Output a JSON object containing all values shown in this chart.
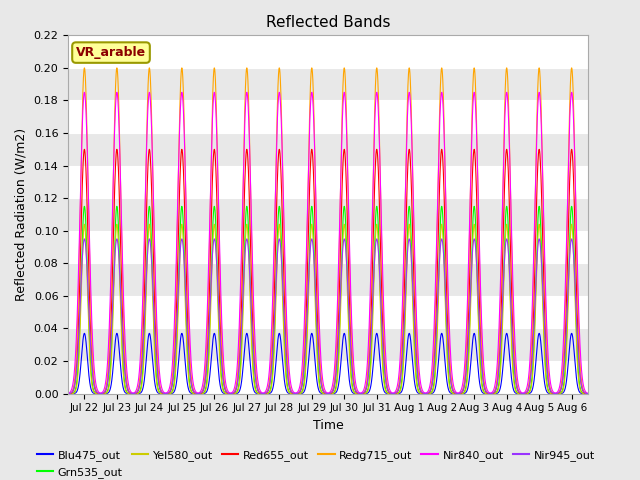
{
  "title": "Reflected Bands",
  "xlabel": "Time",
  "ylabel": "Reflected Radiation (W/m2)",
  "annotation": "VR_arable",
  "annotation_color": "#8B0000",
  "annotation_bg": "#FFFF99",
  "annotation_border": "#999900",
  "ylim": [
    0,
    0.22
  ],
  "yticks": [
    0.0,
    0.02,
    0.04,
    0.06,
    0.08,
    0.1,
    0.12,
    0.14,
    0.16,
    0.18,
    0.2,
    0.22
  ],
  "lines": [
    {
      "label": "Blu475_out",
      "color": "#0000FF",
      "peak": 0.037,
      "sigma": 0.09
    },
    {
      "label": "Grn535_out",
      "color": "#00FF00",
      "peak": 0.115,
      "sigma": 0.1
    },
    {
      "label": "Yel580_out",
      "color": "#CCCC00",
      "peak": 0.104,
      "sigma": 0.095
    },
    {
      "label": "Red655_out",
      "color": "#FF0000",
      "peak": 0.15,
      "sigma": 0.115
    },
    {
      "label": "Redg715_out",
      "color": "#FFA500",
      "peak": 0.2,
      "sigma": 0.12
    },
    {
      "label": "Nir840_out",
      "color": "#FF00FF",
      "peak": 0.185,
      "sigma": 0.135
    },
    {
      "label": "Nir945_out",
      "color": "#9933FF",
      "peak": 0.095,
      "sigma": 0.125
    }
  ],
  "bg_color": "#E8E8E8",
  "plot_bg_color": "#F0F0F0",
  "grid_color": "#FFFFFF",
  "xtick_labels": [
    "Jul 22",
    "Jul 23",
    "Jul 24",
    "Jul 25",
    "Jul 26",
    "Jul 27",
    "Jul 28",
    "Jul 29",
    "Jul 30",
    "Jul 31",
    "Aug 1",
    "Aug 2",
    "Aug 3",
    "Aug 4",
    "Aug 5",
    "Aug 6"
  ],
  "xtick_positions": [
    22,
    23,
    24,
    25,
    26,
    27,
    28,
    29,
    30,
    31,
    32,
    33,
    34,
    35,
    36,
    37
  ],
  "xlim": [
    21.5,
    37.5
  ],
  "day_start": 22,
  "day_end": 37
}
